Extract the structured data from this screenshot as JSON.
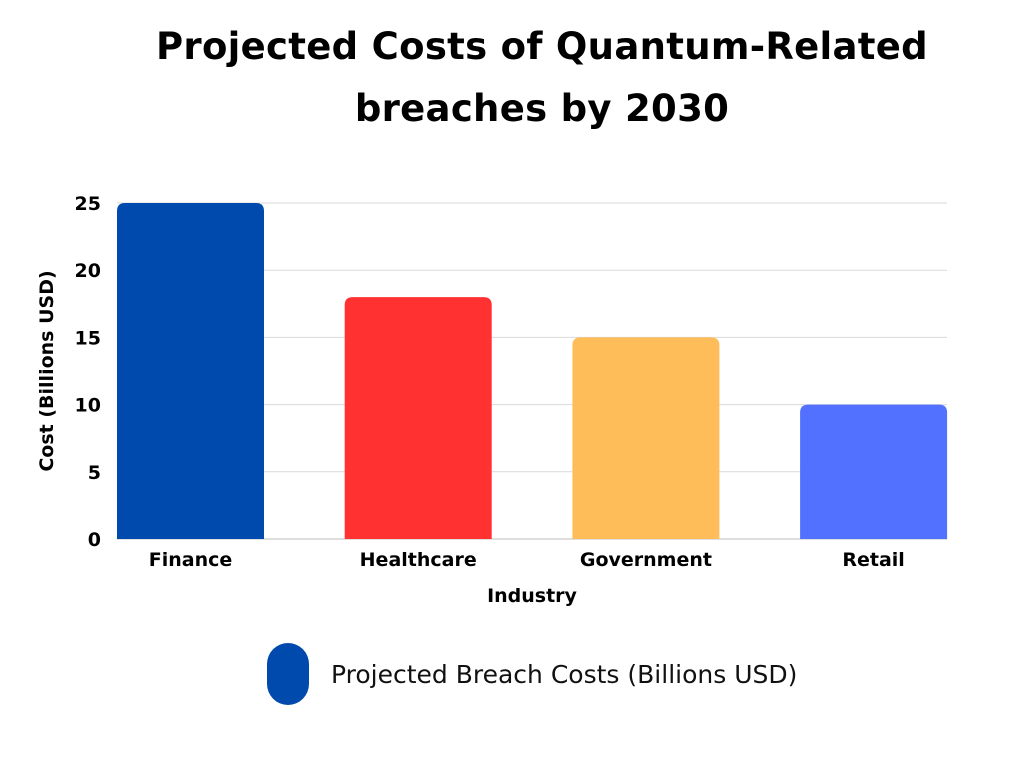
{
  "chart_data": {
    "type": "bar",
    "title": "Projected Costs of Quantum-Related breaches by 2030",
    "title_lines": [
      "Projected Costs of Quantum-Related",
      "breaches by 2030"
    ],
    "xlabel": "Industry",
    "ylabel": "Cost (Billions USD)",
    "categories": [
      "Finance",
      "Healthcare",
      "Government",
      "Retail"
    ],
    "series": [
      {
        "name": "Projected Breach Costs (Billions USD)",
        "values": [
          25,
          18,
          15,
          10
        ],
        "colors": [
          "#004aad",
          "#ff3131",
          "#ffbd59",
          "#5271ff"
        ]
      }
    ],
    "ylim": [
      0,
      25
    ],
    "yticks": [
      "0",
      "5",
      "10",
      "15",
      "20",
      "25"
    ],
    "grid": true,
    "legend_position": "bottom",
    "legend_color": "#004aad"
  }
}
